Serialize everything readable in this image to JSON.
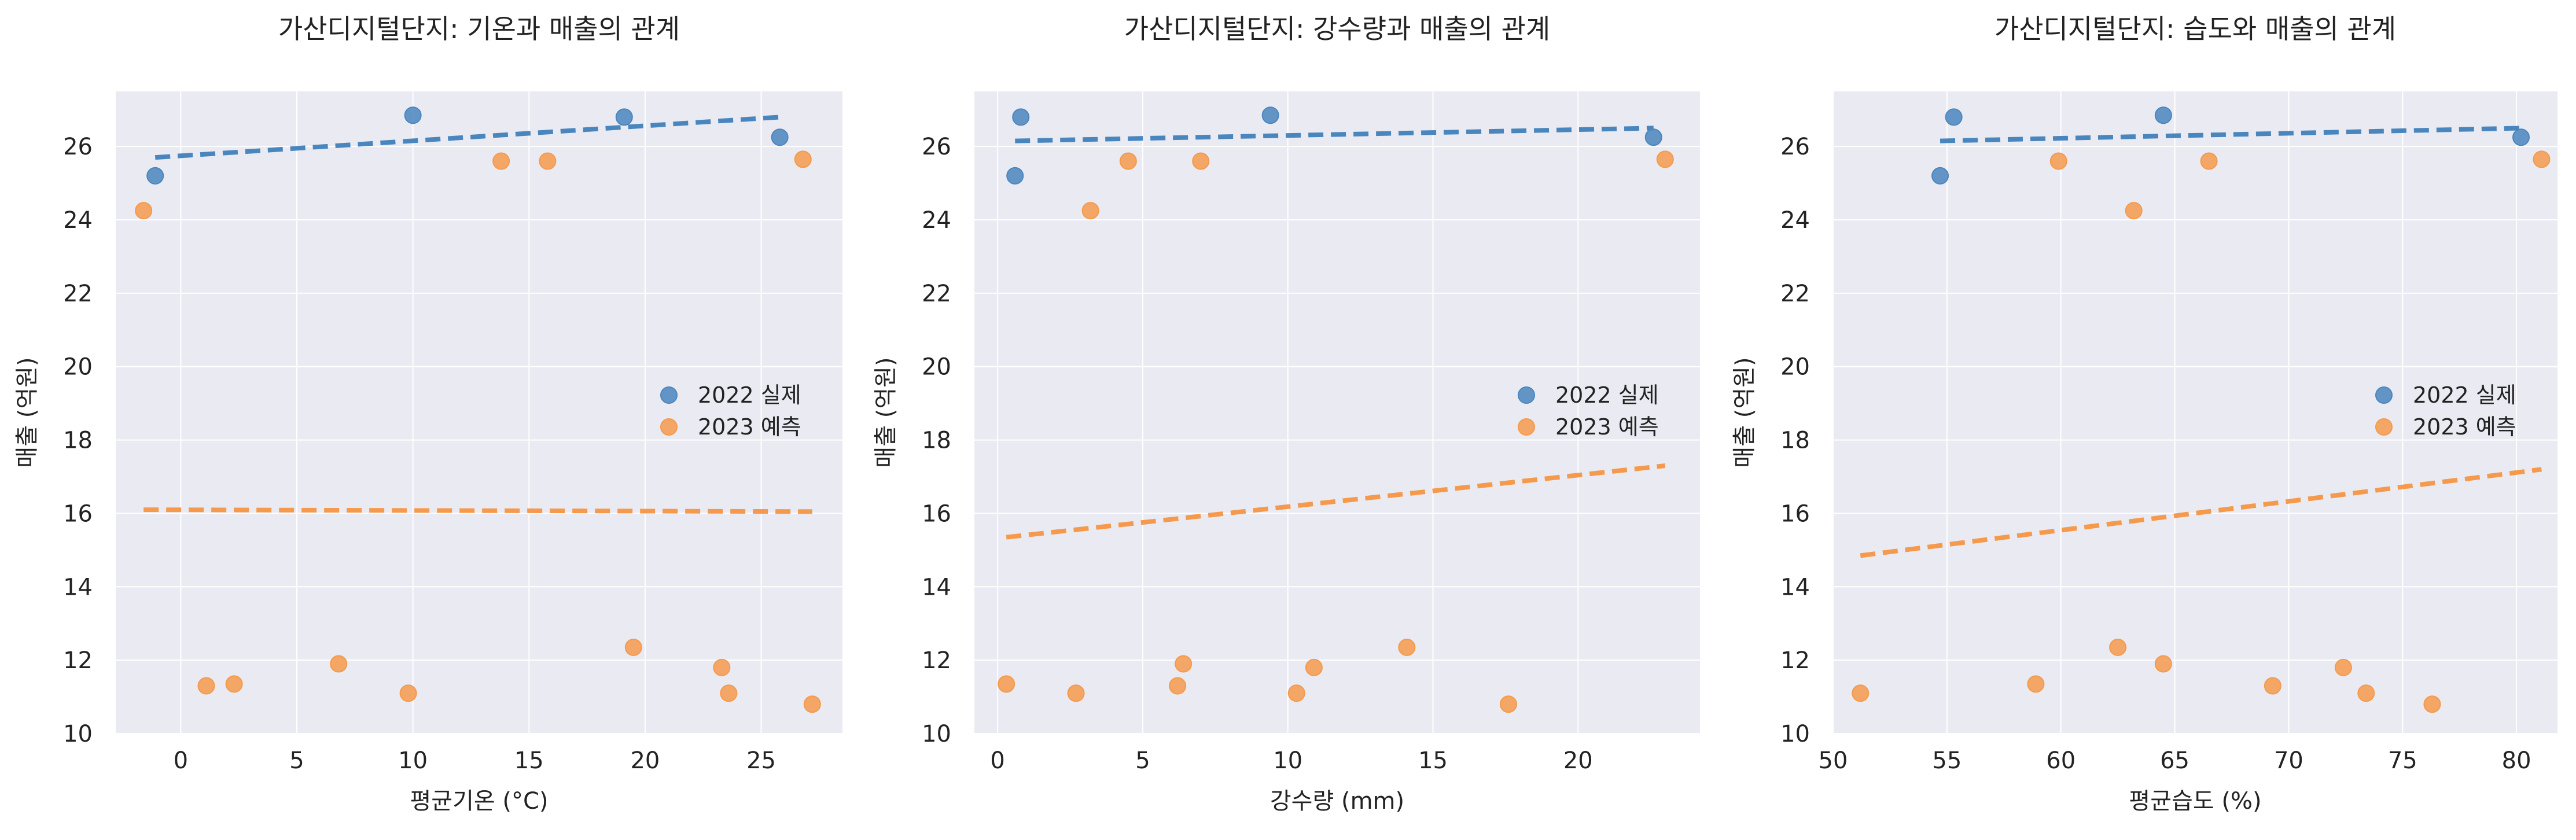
{
  "chart_data": [
    {
      "type": "scatter",
      "title": "가산디지털단지: 기온과 매출의 관계",
      "xlabel": "평균기온 (°C)",
      "ylabel": "매출 (억원)",
      "xlim": [
        -2.8,
        28.5
      ],
      "ylim": [
        10,
        27.5
      ],
      "xticks": [
        0,
        5,
        10,
        15,
        20,
        25
      ],
      "yticks": [
        10,
        12,
        14,
        16,
        18,
        20,
        22,
        24,
        26
      ],
      "grid": true,
      "legend_position": "right-middle",
      "series": [
        {
          "name": "2022 실제",
          "color": "#4a86be",
          "points": [
            [
              -1.1,
              25.2
            ],
            [
              10.0,
              26.85
            ],
            [
              19.1,
              26.8
            ],
            [
              25.8,
              26.25
            ]
          ],
          "trend": [
            [
              -1.1,
              25.7
            ],
            [
              25.8,
              26.8
            ]
          ]
        },
        {
          "name": "2023 예측",
          "color": "#f59a4c",
          "points": [
            [
              -1.6,
              24.25
            ],
            [
              1.1,
              11.3
            ],
            [
              2.3,
              11.35
            ],
            [
              6.8,
              11.9
            ],
            [
              9.8,
              11.1
            ],
            [
              13.8,
              25.6
            ],
            [
              15.8,
              25.6
            ],
            [
              19.5,
              12.35
            ],
            [
              23.3,
              11.8
            ],
            [
              23.6,
              11.1
            ],
            [
              26.8,
              25.65
            ],
            [
              27.2,
              10.8
            ]
          ],
          "trend": [
            [
              -1.6,
              16.1
            ],
            [
              27.2,
              16.05
            ]
          ]
        }
      ]
    },
    {
      "type": "scatter",
      "title": "가산디지털단지: 강수량과 매출의 관계",
      "xlabel": "강수량 (mm)",
      "ylabel": "매출 (억원)",
      "xlim": [
        -0.8,
        24.2
      ],
      "ylim": [
        10,
        27.5
      ],
      "xticks": [
        0,
        5,
        10,
        15,
        20
      ],
      "yticks": [
        10,
        12,
        14,
        16,
        18,
        20,
        22,
        24,
        26
      ],
      "grid": true,
      "legend_position": "right-middle",
      "series": [
        {
          "name": "2022 실제",
          "color": "#4a86be",
          "points": [
            [
              0.6,
              25.2
            ],
            [
              0.8,
              26.8
            ],
            [
              9.4,
              26.85
            ],
            [
              22.6,
              26.25
            ]
          ],
          "trend": [
            [
              0.6,
              26.15
            ],
            [
              22.6,
              26.5
            ]
          ]
        },
        {
          "name": "2023 예측",
          "color": "#f59a4c",
          "points": [
            [
              0.3,
              11.35
            ],
            [
              2.7,
              11.1
            ],
            [
              3.2,
              24.25
            ],
            [
              4.5,
              25.6
            ],
            [
              6.2,
              11.3
            ],
            [
              6.4,
              11.9
            ],
            [
              7.0,
              25.6
            ],
            [
              10.3,
              11.1
            ],
            [
              10.9,
              11.8
            ],
            [
              14.1,
              12.35
            ],
            [
              17.6,
              10.8
            ],
            [
              23.0,
              25.65
            ]
          ],
          "trend": [
            [
              0.3,
              15.35
            ],
            [
              23.0,
              17.3
            ]
          ]
        }
      ]
    },
    {
      "type": "scatter",
      "title": "가산디지털단지: 습도와 매출의 관계",
      "xlabel": "평균습도 (%)",
      "ylabel": "매출 (억원)",
      "xlim": [
        50,
        81.8
      ],
      "ylim": [
        10,
        27.5
      ],
      "xticks": [
        50,
        55,
        60,
        65,
        70,
        75,
        80
      ],
      "yticks": [
        10,
        12,
        14,
        16,
        18,
        20,
        22,
        24,
        26
      ],
      "grid": true,
      "legend_position": "right-middle",
      "series": [
        {
          "name": "2022 실제",
          "color": "#4a86be",
          "points": [
            [
              54.7,
              25.2
            ],
            [
              55.3,
              26.8
            ],
            [
              64.5,
              26.85
            ],
            [
              80.2,
              26.25
            ]
          ],
          "trend": [
            [
              54.7,
              26.15
            ],
            [
              80.2,
              26.5
            ]
          ]
        },
        {
          "name": "2023 예측",
          "color": "#f59a4c",
          "points": [
            [
              51.2,
              11.1
            ],
            [
              58.9,
              11.35
            ],
            [
              59.9,
              25.6
            ],
            [
              62.5,
              12.35
            ],
            [
              63.2,
              24.25
            ],
            [
              64.5,
              11.9
            ],
            [
              66.5,
              25.6
            ],
            [
              69.3,
              11.3
            ],
            [
              72.4,
              11.8
            ],
            [
              73.4,
              11.1
            ],
            [
              76.3,
              10.8
            ],
            [
              81.1,
              25.65
            ]
          ],
          "trend": [
            [
              51.2,
              14.85
            ],
            [
              81.1,
              17.2
            ]
          ]
        }
      ]
    }
  ]
}
